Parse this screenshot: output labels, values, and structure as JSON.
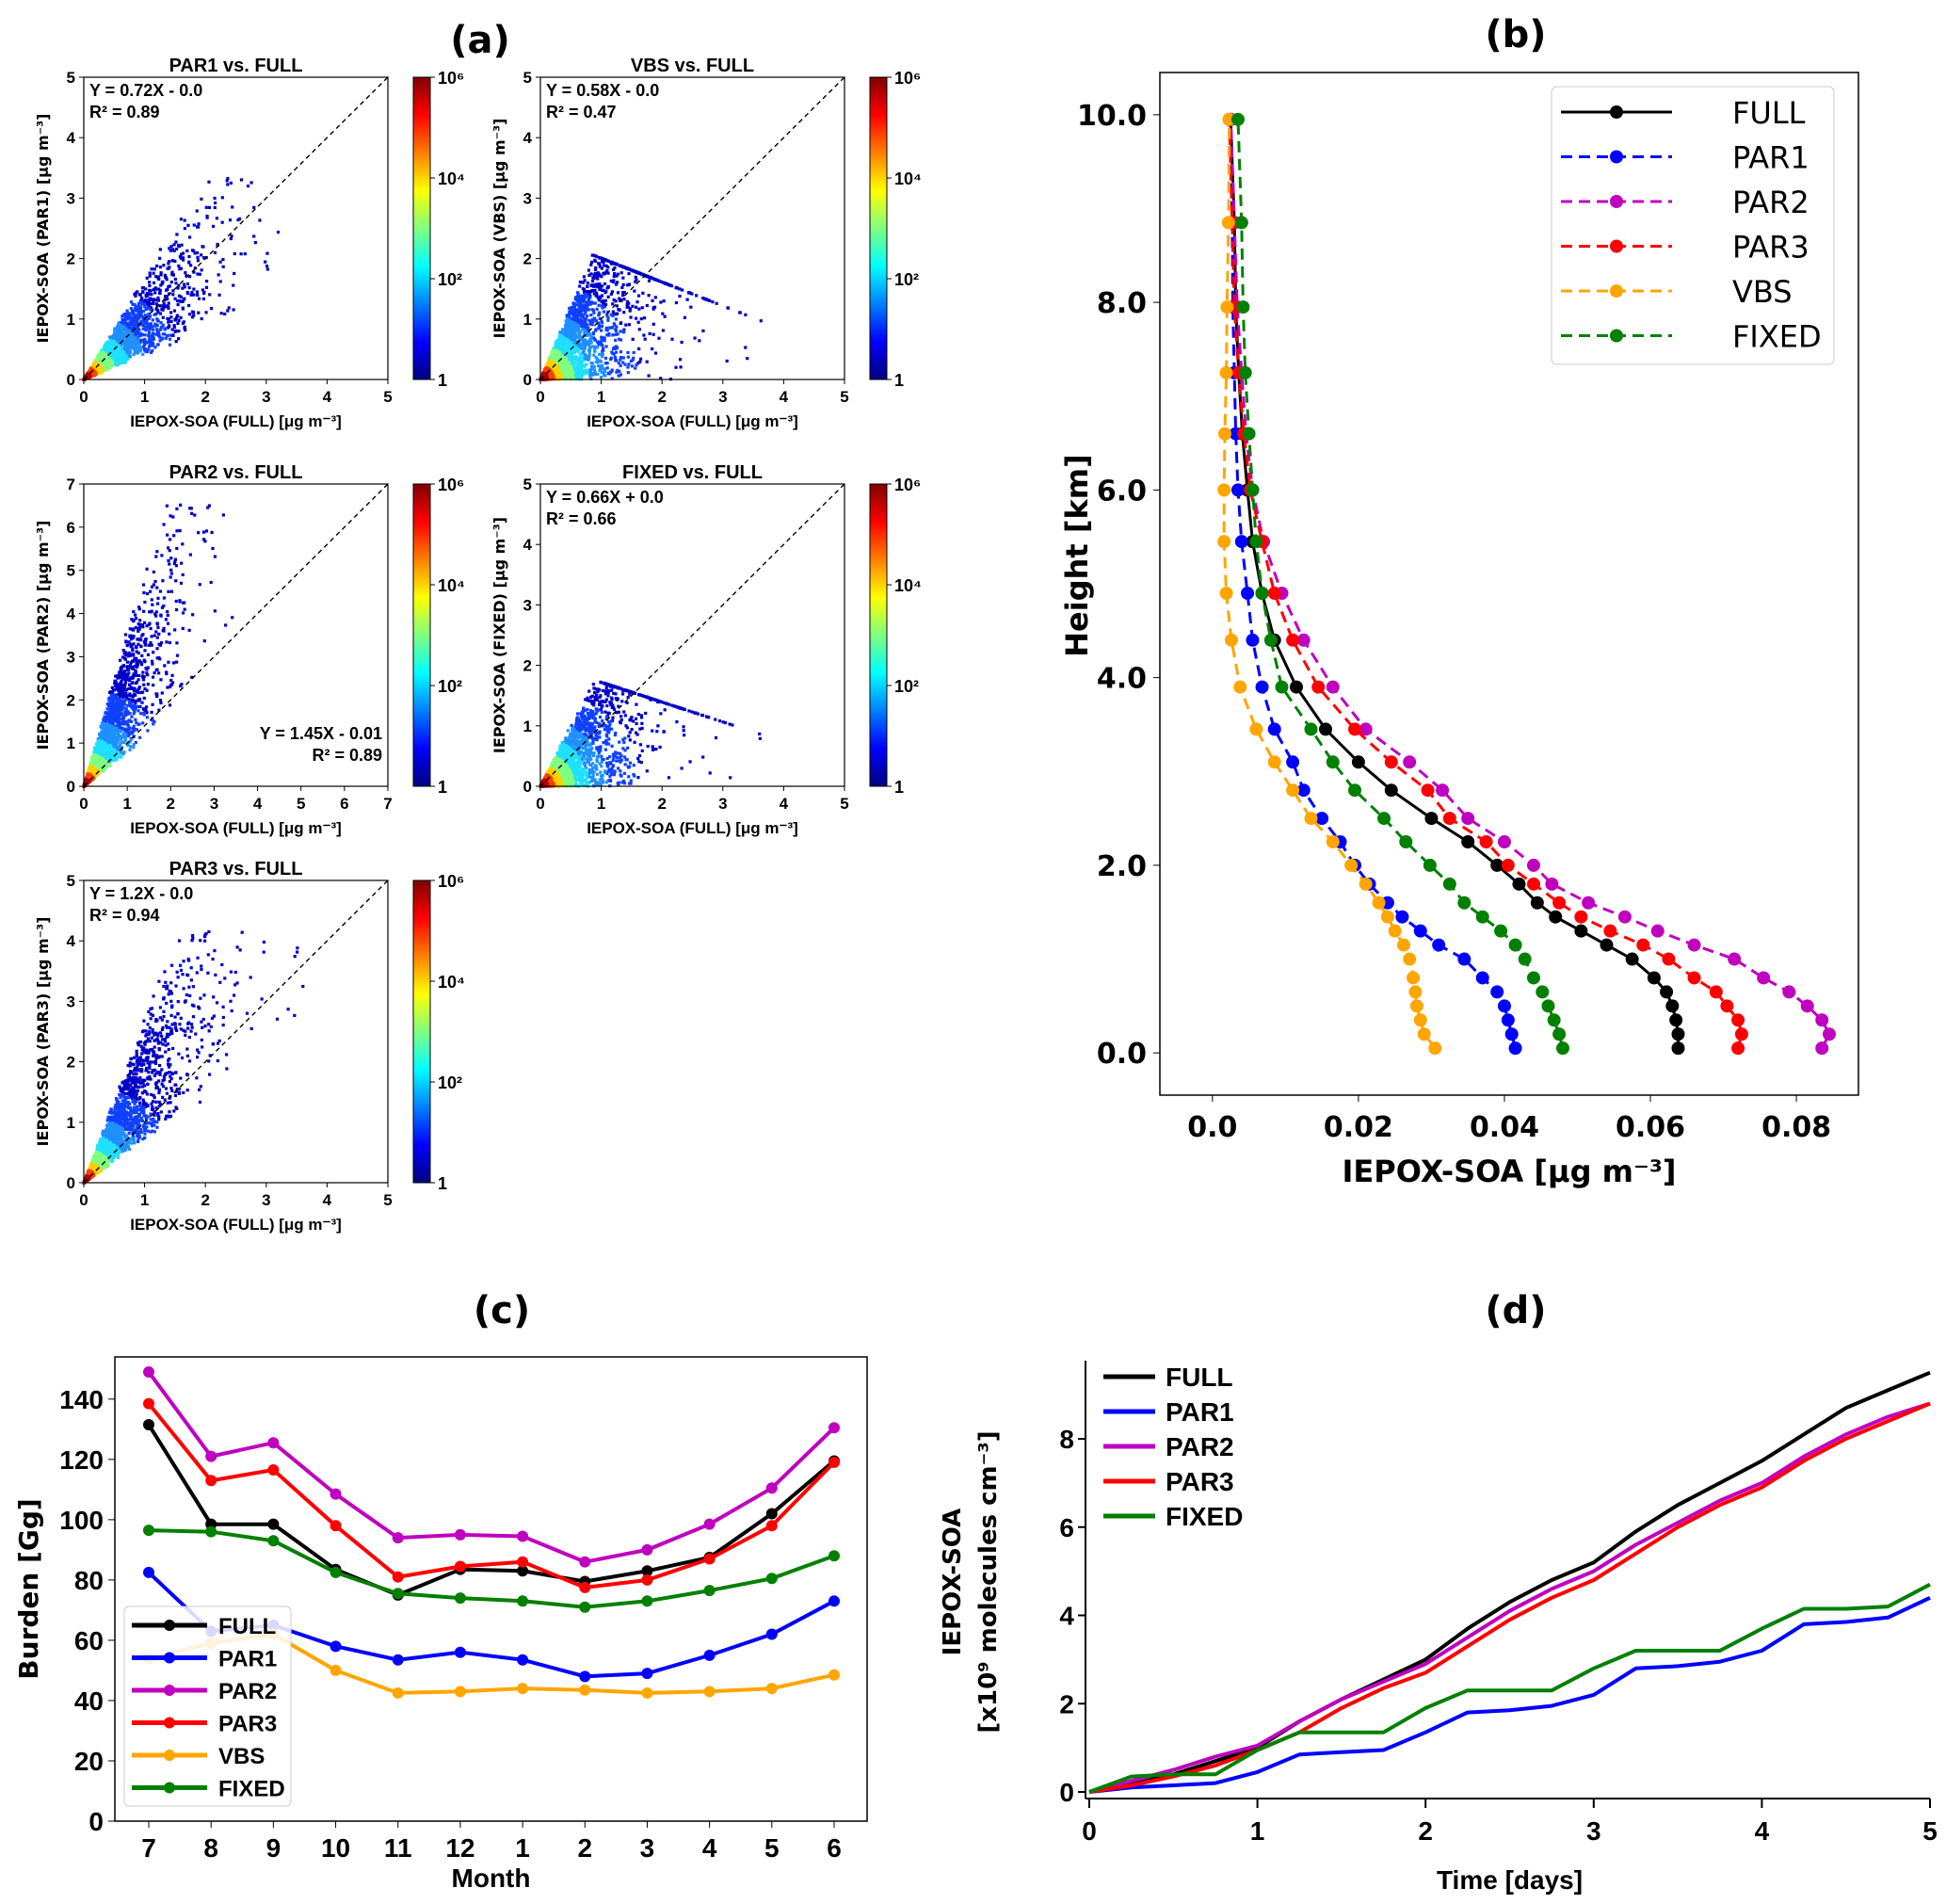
{
  "panel_labels": {
    "a": "(a)",
    "b": "(b)",
    "c": "(c)",
    "d": "(d)"
  },
  "chart_data": [
    {
      "id": "a1",
      "type": "heatmap",
      "title": "PAR1 vs. FULL",
      "xlabel": "IEPOX-SOA (FULL) [μg m⁻³]",
      "ylabel": "IEPOX-SOA (PAR1) [μg m⁻³]",
      "xlim": [
        0,
        5
      ],
      "ylim": [
        0,
        5
      ],
      "xticks": [
        "0",
        "1",
        "2",
        "3",
        "4",
        "5"
      ],
      "yticks": [
        "0",
        "1",
        "2",
        "3",
        "4",
        "5"
      ],
      "equation": "Y = 0.72X - 0.0",
      "r2": "R² = 0.89",
      "one_to_one_line": true,
      "colorbar": {
        "scale": "log",
        "cmap": "jet",
        "ticks": [
          "1",
          "10²",
          "10⁴",
          "10⁶"
        ]
      }
    },
    {
      "id": "a2",
      "type": "heatmap",
      "title": "VBS vs. FULL",
      "xlabel": "IEPOX-SOA (FULL) [μg m⁻³]",
      "ylabel": "IEPOX-SOA (VBS) [μg m⁻³]",
      "xlim": [
        0,
        5
      ],
      "ylim": [
        0,
        5
      ],
      "xticks": [
        "0",
        "1",
        "2",
        "3",
        "4",
        "5"
      ],
      "yticks": [
        "0",
        "1",
        "2",
        "3",
        "4",
        "5"
      ],
      "equation": "Y = 0.58X - 0.0",
      "r2": "R² = 0.47",
      "one_to_one_line": true,
      "colorbar": {
        "scale": "log",
        "cmap": "jet",
        "ticks": [
          "1",
          "10²",
          "10⁴",
          "10⁶"
        ]
      }
    },
    {
      "id": "a3",
      "type": "heatmap",
      "title": "PAR2 vs. FULL",
      "xlabel": "IEPOX-SOA (FULL) [μg m⁻³]",
      "ylabel": "IEPOX-SOA (PAR2) [μg m⁻³]",
      "xlim": [
        0,
        7
      ],
      "ylim": [
        0,
        7
      ],
      "xticks": [
        "0",
        "1",
        "2",
        "3",
        "4",
        "5",
        "6",
        "7"
      ],
      "yticks": [
        "0",
        "1",
        "2",
        "3",
        "4",
        "5",
        "6",
        "7"
      ],
      "equation": "Y = 1.45X - 0.01",
      "r2": "R² = 0.89",
      "one_to_one_line": true,
      "colorbar": {
        "scale": "log",
        "cmap": "jet",
        "ticks": [
          "1",
          "10²",
          "10⁴",
          "10⁶"
        ]
      }
    },
    {
      "id": "a4",
      "type": "heatmap",
      "title": "FIXED vs. FULL",
      "xlabel": "IEPOX-SOA (FULL) [μg m⁻³]",
      "ylabel": "IEPOX-SOA (FIXED) [μg m⁻³]",
      "xlim": [
        0,
        5
      ],
      "ylim": [
        0,
        5
      ],
      "xticks": [
        "0",
        "1",
        "2",
        "3",
        "4",
        "5"
      ],
      "yticks": [
        "0",
        "1",
        "2",
        "3",
        "4",
        "5"
      ],
      "equation": "Y = 0.66X + 0.0",
      "r2": "R² = 0.66",
      "one_to_one_line": true,
      "colorbar": {
        "scale": "log",
        "cmap": "jet",
        "ticks": [
          "1",
          "10²",
          "10⁴",
          "10⁶"
        ]
      }
    },
    {
      "id": "a5",
      "type": "heatmap",
      "title": "PAR3 vs. FULL",
      "xlabel": "IEPOX-SOA (FULL) [μg m⁻³]",
      "ylabel": "IEPOX-SOA (PAR3) [μg m⁻³]",
      "xlim": [
        0,
        5
      ],
      "ylim": [
        0,
        5
      ],
      "xticks": [
        "0",
        "1",
        "2",
        "3",
        "4",
        "5"
      ],
      "yticks": [
        "0",
        "1",
        "2",
        "3",
        "4",
        "5"
      ],
      "equation": "Y = 1.2X - 0.0",
      "r2": "R² = 0.94",
      "one_to_one_line": true,
      "colorbar": {
        "scale": "log",
        "cmap": "jet",
        "ticks": [
          "1",
          "10²",
          "10⁴",
          "10⁶"
        ]
      }
    },
    {
      "id": "b",
      "type": "line",
      "xlabel": "IEPOX-SOA [μg m⁻³]",
      "ylabel": "Height [km]",
      "xlim": [
        -0.0072,
        0.0885
      ],
      "ylim": [
        -0.45,
        10.45
      ],
      "xticks": [
        0,
        0.02,
        0.04,
        0.06,
        0.08
      ],
      "xtick_labels": [
        "0.0",
        "0.02",
        "0.04",
        "0.06",
        "0.08"
      ],
      "yticks": [
        0,
        2,
        4,
        6,
        8,
        10
      ],
      "ytick_labels": [
        "0.0",
        "2.0",
        "4.0",
        "6.0",
        "8.0",
        "10.0"
      ],
      "legend": "top-right",
      "y": [
        0.05,
        0.2,
        0.35,
        0.5,
        0.65,
        0.8,
        1.0,
        1.15,
        1.3,
        1.45,
        1.6,
        1.8,
        2.0,
        2.25,
        2.5,
        2.8,
        3.1,
        3.45,
        3.9,
        4.4,
        4.9,
        5.45,
        6.0,
        6.6,
        7.25,
        7.95,
        8.85,
        9.95
      ],
      "series": [
        {
          "name": "FULL",
          "color": "#000000",
          "dash": false,
          "values": [
            0.0638,
            0.0638,
            0.0635,
            0.063,
            0.0622,
            0.0605,
            0.0575,
            0.054,
            0.0505,
            0.047,
            0.0445,
            0.042,
            0.039,
            0.035,
            0.03,
            0.0245,
            0.02,
            0.0155,
            0.0115,
            0.0085,
            0.0068,
            0.0055,
            0.0048,
            0.0041,
            0.0036,
            0.0032,
            0.003,
            0.0025
          ]
        },
        {
          "name": "PAR1",
          "color": "#0000ff",
          "dash": true,
          "values": [
            0.0415,
            0.041,
            0.0405,
            0.04,
            0.039,
            0.037,
            0.0345,
            0.031,
            0.0285,
            0.026,
            0.024,
            0.0215,
            0.0195,
            0.0175,
            0.015,
            0.0125,
            0.011,
            0.0085,
            0.0068,
            0.0055,
            0.0048,
            0.004,
            0.0035,
            0.0032,
            0.003,
            0.0028,
            0.0027,
            0.0025
          ]
        },
        {
          "name": "PAR2",
          "color": "#bf00bf",
          "dash": true,
          "values": [
            0.0835,
            0.0845,
            0.0835,
            0.0815,
            0.079,
            0.0755,
            0.0715,
            0.066,
            0.061,
            0.0565,
            0.0515,
            0.0465,
            0.044,
            0.04,
            0.035,
            0.0315,
            0.027,
            0.021,
            0.0165,
            0.0125,
            0.0095,
            0.007,
            0.0055,
            0.0046,
            0.004,
            0.0034,
            0.003,
            0.0025
          ]
        },
        {
          "name": "PAR3",
          "color": "#ff0000",
          "dash": true,
          "values": [
            0.072,
            0.0725,
            0.072,
            0.0705,
            0.069,
            0.066,
            0.0625,
            0.059,
            0.0545,
            0.0505,
            0.0475,
            0.044,
            0.0405,
            0.0375,
            0.0325,
            0.0295,
            0.0245,
            0.0195,
            0.0145,
            0.011,
            0.0085,
            0.0068,
            0.0052,
            0.0043,
            0.0036,
            0.003,
            0.0027,
            0.0023
          ]
        },
        {
          "name": "VBS",
          "color": "#ffa500",
          "dash": true,
          "values": [
            0.0305,
            0.029,
            0.0285,
            0.028,
            0.0278,
            0.0275,
            0.027,
            0.0262,
            0.025,
            0.024,
            0.0228,
            0.021,
            0.019,
            0.0165,
            0.0135,
            0.011,
            0.0085,
            0.006,
            0.0038,
            0.0026,
            0.0019,
            0.0016,
            0.0016,
            0.0017,
            0.0019,
            0.002,
            0.0022,
            0.0023
          ]
        },
        {
          "name": "FIXED",
          "color": "#008000",
          "dash": true,
          "values": [
            0.048,
            0.0475,
            0.0468,
            0.046,
            0.0452,
            0.044,
            0.0428,
            0.0415,
            0.0395,
            0.037,
            0.0345,
            0.0325,
            0.0298,
            0.0265,
            0.0235,
            0.0195,
            0.0165,
            0.0135,
            0.0095,
            0.008,
            0.0068,
            0.006,
            0.0055,
            0.005,
            0.0045,
            0.0042,
            0.004,
            0.0035
          ]
        }
      ]
    },
    {
      "id": "c",
      "type": "line",
      "xlabel": "Month",
      "ylabel": "Burden [Gg]",
      "ylim": [
        0,
        154
      ],
      "yticks": [
        0,
        20,
        40,
        60,
        80,
        100,
        120,
        140
      ],
      "categories": [
        "7",
        "8",
        "9",
        "10",
        "11",
        "12",
        "1",
        "2",
        "3",
        "4",
        "5",
        "6"
      ],
      "legend": "lower-left",
      "series": [
        {
          "name": "FULL",
          "color": "#000000",
          "values": [
            131.5,
            98.5,
            98.5,
            83.5,
            75,
            83.5,
            83,
            79.5,
            83,
            87.5,
            102,
            119.5
          ]
        },
        {
          "name": "PAR1",
          "color": "#0000ff",
          "values": [
            82.5,
            63,
            65,
            58,
            53.5,
            56,
            53.5,
            48,
            49,
            55,
            62,
            73
          ]
        },
        {
          "name": "PAR2",
          "color": "#bf00bf",
          "values": [
            149,
            121,
            125.5,
            108.5,
            94,
            95,
            94.5,
            86,
            90,
            98.5,
            110.5,
            130.5
          ]
        },
        {
          "name": "PAR3",
          "color": "#ff0000",
          "values": [
            138.5,
            113,
            116.5,
            98,
            81,
            84.5,
            86,
            77.5,
            80,
            87,
            98,
            119
          ]
        },
        {
          "name": "VBS",
          "color": "#ffa500",
          "values": [
            54,
            59,
            62,
            50,
            42.5,
            43,
            44,
            43.5,
            42.5,
            43,
            44,
            48.5
          ]
        },
        {
          "name": "FIXED",
          "color": "#008000",
          "values": [
            96.5,
            96,
            93,
            82.5,
            75.5,
            74,
            73,
            71,
            73,
            76.5,
            80.5,
            88
          ]
        }
      ]
    },
    {
      "id": "d",
      "type": "line",
      "xlabel": "Time [days]",
      "ylabel": "IEPOX-SOA",
      "ylabel2": "[x10⁹ molecules cm⁻³]",
      "xlim": [
        0,
        5
      ],
      "ylim": [
        -0.1,
        9.6
      ],
      "xticks": [
        0,
        1,
        2,
        3,
        4,
        5
      ],
      "yticks": [
        0,
        2,
        4,
        6,
        8
      ],
      "legend": "top-left",
      "x": [
        0,
        0.25,
        0.5,
        0.75,
        1,
        1.25,
        1.5,
        1.75,
        2,
        2.25,
        2.5,
        2.75,
        3,
        3.25,
        3.5,
        3.75,
        4,
        4.25,
        4.5,
        4.75,
        5
      ],
      "series": [
        {
          "name": "FULL",
          "color": "#000000",
          "values": [
            0,
            0.2,
            0.4,
            0.7,
            1.0,
            1.6,
            2.1,
            2.55,
            3.0,
            3.7,
            4.3,
            4.8,
            5.2,
            5.9,
            6.5,
            7.0,
            7.5,
            8.1,
            8.7,
            9.1,
            9.5
          ]
        },
        {
          "name": "PAR1",
          "color": "#0000ff",
          "values": [
            0,
            0.1,
            0.15,
            0.2,
            0.45,
            0.85,
            0.9,
            0.95,
            1.35,
            1.8,
            1.85,
            1.95,
            2.2,
            2.8,
            2.85,
            2.95,
            3.2,
            3.8,
            3.85,
            3.95,
            4.4
          ]
        },
        {
          "name": "PAR2",
          "color": "#bf00bf",
          "values": [
            0,
            0.25,
            0.5,
            0.8,
            1.05,
            1.6,
            2.1,
            2.5,
            2.9,
            3.5,
            4.1,
            4.6,
            5.0,
            5.6,
            6.1,
            6.6,
            7.0,
            7.6,
            8.1,
            8.5,
            8.8
          ]
        },
        {
          "name": "PAR3",
          "color": "#ff0000",
          "values": [
            0,
            0.15,
            0.35,
            0.6,
            0.95,
            1.35,
            1.9,
            2.35,
            2.7,
            3.3,
            3.9,
            4.4,
            4.8,
            5.4,
            6.0,
            6.5,
            6.9,
            7.5,
            8.0,
            8.4,
            8.8
          ]
        },
        {
          "name": "FIXED",
          "color": "#008000",
          "values": [
            0,
            0.35,
            0.4,
            0.4,
            0.95,
            1.35,
            1.35,
            1.35,
            1.9,
            2.3,
            2.3,
            2.3,
            2.8,
            3.2,
            3.2,
            3.2,
            3.7,
            4.15,
            4.15,
            4.2,
            4.7
          ]
        }
      ]
    }
  ]
}
